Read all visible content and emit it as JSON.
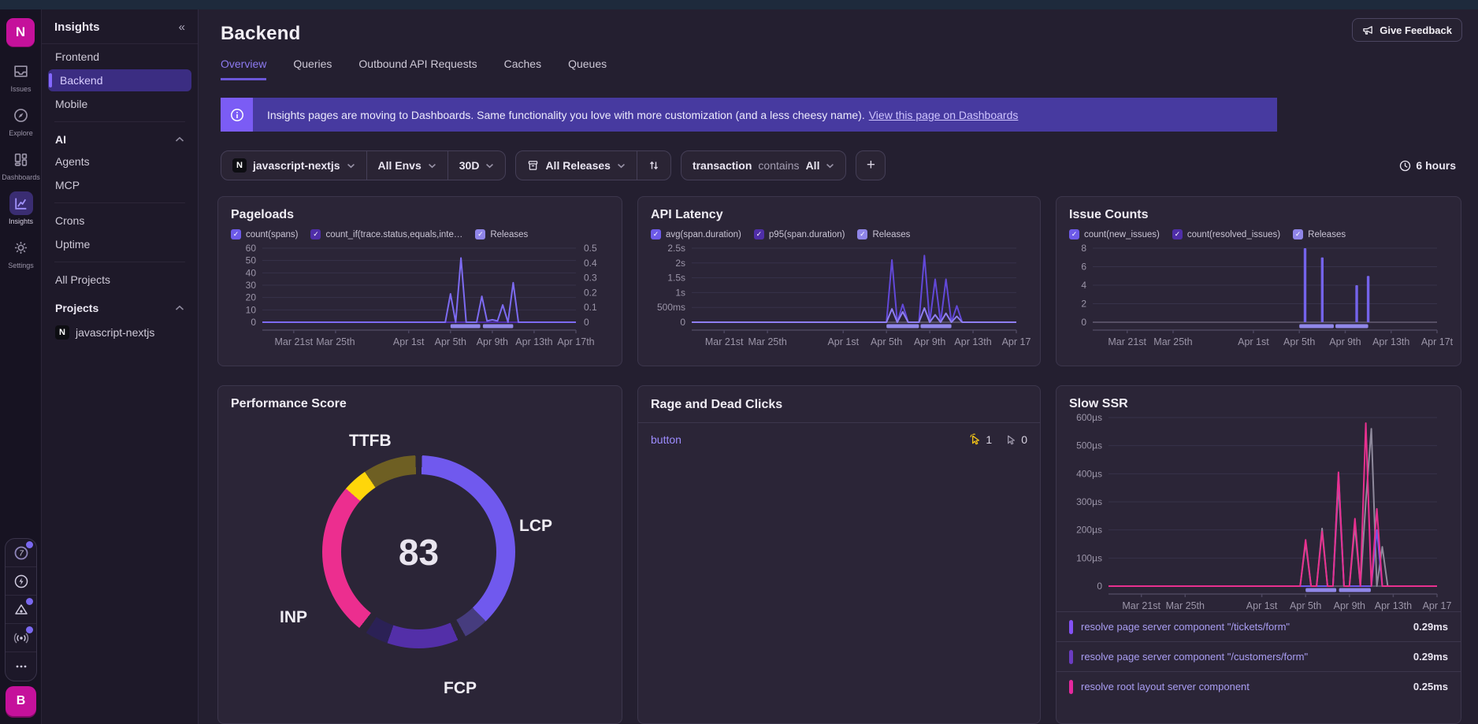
{
  "rail": {
    "logo_letter": "N",
    "items": [
      {
        "label": "Issues"
      },
      {
        "label": "Explore"
      },
      {
        "label": "Dashboards"
      },
      {
        "label": "Insights",
        "active": true
      },
      {
        "label": "Settings"
      }
    ],
    "avatar_letter": "B"
  },
  "sidebar": {
    "title": "Insights",
    "collapse_icon": "«",
    "groups": [
      {
        "items": [
          {
            "label": "Frontend"
          },
          {
            "label": "Backend",
            "active": true
          },
          {
            "label": "Mobile"
          }
        ]
      },
      {
        "header": "AI",
        "items": [
          {
            "label": "Agents"
          },
          {
            "label": "MCP"
          }
        ]
      },
      {
        "items": [
          {
            "label": "Crons"
          },
          {
            "label": "Uptime"
          }
        ]
      },
      {
        "items": [
          {
            "label": "All Projects"
          }
        ]
      },
      {
        "header": "Projects",
        "items": [
          {
            "label": "javascript-nextjs",
            "badge": "N"
          }
        ]
      }
    ]
  },
  "header": {
    "title": "Backend",
    "feedback_label": "Give Feedback",
    "tabs": [
      {
        "label": "Overview",
        "active": true
      },
      {
        "label": "Queries"
      },
      {
        "label": "Outbound API Requests"
      },
      {
        "label": "Caches"
      },
      {
        "label": "Queues"
      }
    ]
  },
  "banner": {
    "text": "Insights pages are moving to Dashboards. Same functionality you love with more customization (and a less cheesy name).",
    "link": "View this page on Dashboards"
  },
  "filters": {
    "project": "javascript-nextjs",
    "project_badge": "N",
    "env": "All Envs",
    "period": "30D",
    "releases": "All Releases",
    "condition_field": "transaction",
    "condition_op": "contains",
    "condition_value": "All",
    "add_label": "+",
    "time_range": "6 hours"
  },
  "cards": {
    "rage": {
      "title": "Rage and Dead Clicks",
      "row_label": "button",
      "rage_count": "1",
      "dead_count": "0",
      "rage_color": "#f5c518",
      "dead_color": "#9b95a8"
    },
    "slow_ssr": {
      "rows": [
        {
          "label": "resolve page server component \"/tickets/form\"",
          "value": "0.29ms",
          "color": "#8451f5"
        },
        {
          "label": "resolve page server component \"/customers/form\"",
          "value": "0.29ms",
          "color": "#6b3cc2"
        },
        {
          "label": "resolve root layout server component",
          "value": "0.25ms",
          "color": "#e5289e"
        }
      ]
    }
  },
  "chart_data": [
    {
      "id": "pageloads",
      "type": "line",
      "title": "Pageloads",
      "legend": [
        {
          "label": "count(spans)",
          "color": "#6d5ae8"
        },
        {
          "label": "count_if(trace.status,equals,inte…",
          "color": "#4f2ea8"
        },
        {
          "label": "Releases",
          "color": "#8f85e8"
        }
      ],
      "n": 61,
      "ml": 40,
      "mr": 42,
      "x_tick_labels": [
        "Mar 21st",
        "Mar 25th",
        "Apr 1st",
        "Apr 5th",
        "Apr 9th",
        "Apr 13th",
        "Apr 17th"
      ],
      "x_tick_pos": [
        6,
        14,
        28,
        36,
        44,
        52,
        60
      ],
      "y_left": {
        "labels": [
          "60",
          "50",
          "40",
          "30",
          "20",
          "10",
          "0"
        ],
        "values": [
          60,
          50,
          40,
          30,
          20,
          10,
          0
        ],
        "max": 60
      },
      "y_right": {
        "labels": [
          "0.5",
          "0.4",
          "0.3",
          "0.2",
          "0.1",
          "0"
        ],
        "values": [
          0.5,
          0.4,
          0.3,
          0.2,
          0.1,
          0
        ],
        "max": 0.5
      },
      "releases": [
        [
          36,
          41.7
        ],
        [
          42.2,
          48
        ]
      ],
      "series": [
        {
          "name": "count_if(trace.status,equals,internal_error)",
          "color": "#4f2ea8",
          "axis": "right",
          "values": [
            0,
            0,
            0,
            0,
            0,
            0,
            0,
            0,
            0,
            0,
            0,
            0,
            0,
            0,
            0,
            0,
            0,
            0,
            0,
            0,
            0,
            0,
            0,
            0,
            0,
            0,
            0,
            0,
            0,
            0,
            0,
            0,
            0,
            0,
            0,
            0,
            0,
            0,
            0,
            0,
            0,
            0,
            0,
            0,
            0,
            0,
            0,
            0,
            0,
            0,
            0,
            0,
            0,
            0,
            0,
            0,
            0,
            0,
            0,
            0,
            0
          ]
        },
        {
          "name": "count(spans)",
          "color": "#7d6bf2",
          "axis": "left",
          "values": [
            0,
            0,
            0,
            0,
            0,
            0,
            0,
            0,
            0,
            0,
            0,
            0,
            0,
            0,
            0,
            0,
            0,
            0,
            0,
            0,
            0,
            0,
            0,
            0,
            0,
            0,
            0,
            0,
            0,
            0,
            0,
            0,
            0,
            0,
            0,
            0,
            23,
            0,
            52,
            0,
            0,
            0,
            21,
            1,
            2,
            1,
            14,
            0,
            32,
            0,
            0,
            0,
            0,
            0,
            0,
            0,
            0,
            0,
            0,
            0,
            0
          ]
        }
      ]
    },
    {
      "id": "api-latency",
      "type": "line",
      "title": "API Latency",
      "legend": [
        {
          "label": "avg(span.duration)",
          "color": "#6d5ae8"
        },
        {
          "label": "p95(span.duration)",
          "color": "#4f2ea8"
        },
        {
          "label": "Releases",
          "color": "#8f85e8"
        }
      ],
      "n": 61,
      "ml": 52,
      "mr": 14,
      "x_tick_labels": [
        "Mar 21st",
        "Mar 25th",
        "Apr 1st",
        "Apr 5th",
        "Apr 9th",
        "Apr 13th",
        "Apr 17"
      ],
      "x_tick_pos": [
        6,
        14,
        28,
        36,
        44,
        52,
        60
      ],
      "y_left": {
        "labels": [
          "2.5s",
          "2s",
          "1.5s",
          "1s",
          "500ms",
          "0"
        ],
        "values": [
          2.5,
          2,
          1.5,
          1,
          0.5,
          0
        ],
        "max": 2.5
      },
      "releases": [
        [
          36,
          42
        ],
        [
          42.3,
          48
        ]
      ],
      "series": [
        {
          "name": "p95(span.duration)",
          "color": "#6248d8",
          "axis": "left",
          "values": [
            0,
            0,
            0,
            0,
            0,
            0,
            0,
            0,
            0,
            0,
            0,
            0,
            0,
            0,
            0,
            0,
            0,
            0,
            0,
            0,
            0,
            0,
            0,
            0,
            0,
            0,
            0,
            0,
            0,
            0,
            0,
            0,
            0,
            0,
            0,
            0,
            0,
            2.1,
            0,
            0.6,
            0,
            0,
            0,
            2.25,
            0,
            1.45,
            0,
            1.45,
            0,
            0.55,
            0,
            0,
            0,
            0,
            0,
            0,
            0,
            0,
            0,
            0,
            0
          ]
        },
        {
          "name": "avg(span.duration)",
          "color": "#8f7ef2",
          "axis": "left",
          "values": [
            0,
            0,
            0,
            0,
            0,
            0,
            0,
            0,
            0,
            0,
            0,
            0,
            0,
            0,
            0,
            0,
            0,
            0,
            0,
            0,
            0,
            0,
            0,
            0,
            0,
            0,
            0,
            0,
            0,
            0,
            0,
            0,
            0,
            0,
            0,
            0,
            0,
            0.45,
            0,
            0.35,
            0,
            0,
            0,
            0.48,
            0,
            0.25,
            0,
            0.3,
            0,
            0.2,
            0,
            0,
            0,
            0,
            0,
            0,
            0,
            0,
            0,
            0,
            0
          ]
        }
      ]
    },
    {
      "id": "issue-counts",
      "type": "bar",
      "title": "Issue Counts",
      "legend": [
        {
          "label": "count(new_issues)",
          "color": "#6d5ae8"
        },
        {
          "label": "count(resolved_issues)",
          "color": "#4f2ea8"
        },
        {
          "label": "Releases",
          "color": "#8f85e8"
        }
      ],
      "n": 61,
      "ml": 30,
      "mr": 14,
      "x_tick_labels": [
        "Mar 21st",
        "Mar 25th",
        "Apr 1st",
        "Apr 5th",
        "Apr 9th",
        "Apr 13th",
        "Apr 17t"
      ],
      "x_tick_pos": [
        6,
        14,
        28,
        36,
        44,
        52,
        60
      ],
      "y_left": {
        "labels": [
          "8",
          "6",
          "4",
          "2",
          "0"
        ],
        "values": [
          8,
          6,
          4,
          2,
          0
        ],
        "max": 8
      },
      "releases": [
        [
          36,
          42
        ],
        [
          42.3,
          48
        ]
      ],
      "series": [
        {
          "name": "count(new_issues)",
          "color": "#7463ea",
          "axis": "left",
          "values": [
            0,
            0,
            0,
            0,
            0,
            0,
            0,
            0,
            0,
            0,
            0,
            0,
            0,
            0,
            0,
            0,
            0,
            0,
            0,
            0,
            0,
            0,
            0,
            0,
            0,
            0,
            0,
            0,
            0,
            0,
            0,
            0,
            0,
            0,
            0,
            0,
            0,
            8,
            0,
            0,
            7,
            0,
            0,
            0,
            0,
            0,
            4,
            0,
            5,
            0,
            0,
            0,
            0,
            0,
            0,
            0,
            0,
            0,
            0,
            0,
            0
          ]
        },
        {
          "name": "count(resolved_issues)",
          "color": "#4f2ea8",
          "axis": "left",
          "values": [
            0,
            0,
            0,
            0,
            0,
            0,
            0,
            0,
            0,
            0,
            0,
            0,
            0,
            0,
            0,
            0,
            0,
            0,
            0,
            0,
            0,
            0,
            0,
            0,
            0,
            0,
            0,
            0,
            0,
            0,
            0,
            0,
            0,
            0,
            0,
            0,
            0,
            0,
            0,
            0,
            0,
            0,
            0,
            0,
            0,
            0,
            0,
            0,
            0,
            0,
            0,
            0,
            0,
            0,
            0,
            0,
            0,
            0,
            0,
            0,
            0
          ]
        }
      ]
    },
    {
      "id": "slow-ssr",
      "type": "line",
      "title": "Slow SSR",
      "n": 61,
      "ml": 50,
      "mr": 14,
      "x_tick_labels": [
        "Mar 21st",
        "Mar 25th",
        "Apr 1st",
        "Apr 5th",
        "Apr 9th",
        "Apr 13th",
        "Apr 17"
      ],
      "x_tick_pos": [
        6,
        14,
        28,
        36,
        44,
        52,
        60
      ],
      "y_left": {
        "labels": [
          "600µs",
          "500µs",
          "400µs",
          "300µs",
          "200µs",
          "100µs",
          "0"
        ],
        "values": [
          600,
          500,
          400,
          300,
          200,
          100,
          0
        ],
        "max": 600
      },
      "releases": [
        [
          36,
          41.6
        ],
        [
          42.1,
          47.9
        ]
      ],
      "series": [
        {
          "name": "series-gray",
          "color": "#8f8a9c",
          "axis": "left",
          "values": [
            0,
            0,
            0,
            0,
            0,
            0,
            0,
            0,
            0,
            0,
            0,
            0,
            0,
            0,
            0,
            0,
            0,
            0,
            0,
            0,
            0,
            0,
            0,
            0,
            0,
            0,
            0,
            0,
            0,
            0,
            0,
            0,
            0,
            0,
            0,
            0,
            155,
            0,
            0,
            205,
            0,
            0,
            365,
            0,
            0,
            215,
            0,
            300,
            560,
            0,
            140,
            0,
            0,
            0,
            0,
            0,
            0,
            0,
            0,
            0,
            0
          ]
        },
        {
          "name": "series-purple",
          "color": "#6d58e8",
          "axis": "left",
          "values": [
            0,
            0,
            0,
            0,
            0,
            0,
            0,
            0,
            0,
            0,
            0,
            0,
            0,
            0,
            0,
            0,
            0,
            0,
            0,
            0,
            0,
            0,
            0,
            0,
            0,
            0,
            0,
            0,
            0,
            0,
            0,
            0,
            0,
            0,
            0,
            0,
            0,
            0,
            0,
            0,
            0,
            0,
            400,
            0,
            0,
            0,
            0,
            0,
            0,
            200,
            0,
            0,
            0,
            0,
            0,
            0,
            0,
            0,
            0,
            0,
            0
          ]
        },
        {
          "name": "series-pink",
          "color": "#e8308f",
          "axis": "left",
          "values": [
            0,
            0,
            0,
            0,
            0,
            0,
            0,
            0,
            0,
            0,
            0,
            0,
            0,
            0,
            0,
            0,
            0,
            0,
            0,
            0,
            0,
            0,
            0,
            0,
            0,
            0,
            0,
            0,
            0,
            0,
            0,
            0,
            0,
            0,
            0,
            0,
            165,
            0,
            0,
            195,
            0,
            0,
            405,
            0,
            0,
            240,
            0,
            580,
            0,
            275,
            0,
            0,
            0,
            0,
            0,
            0,
            0,
            0,
            0,
            0,
            0
          ]
        }
      ]
    },
    {
      "id": "performance-score",
      "type": "donut",
      "title": "Performance Score",
      "center_value": "83",
      "labels": {
        "ttfb": "TTFB",
        "lcp": "LCP",
        "fcp": "FCP",
        "inp": "INP"
      },
      "segments": [
        {
          "name": "gap-top",
          "color": "transparent",
          "start": 0,
          "end": 2
        },
        {
          "name": "lcp",
          "color": "#7059ee",
          "start": 2,
          "end": 136
        },
        {
          "name": "lcp-dim",
          "color": "#463c7e",
          "start": 136,
          "end": 151
        },
        {
          "name": "gap-1",
          "color": "transparent",
          "start": 151,
          "end": 156
        },
        {
          "name": "fcp",
          "color": "#532fa8",
          "start": 156,
          "end": 199
        },
        {
          "name": "fcp-dim",
          "color": "#2b2155",
          "start": 199,
          "end": 213
        },
        {
          "name": "gap-2",
          "color": "transparent",
          "start": 213,
          "end": 218
        },
        {
          "name": "inp",
          "color": "#ec2e8f",
          "start": 218,
          "end": 311
        },
        {
          "name": "ttfb",
          "color": "#ffd60a",
          "start": 311,
          "end": 326
        },
        {
          "name": "ttfb-dim",
          "color": "#6e5f23",
          "start": 326,
          "end": 358
        },
        {
          "name": "gap-3",
          "color": "transparent",
          "start": 358,
          "end": 360
        }
      ]
    }
  ]
}
